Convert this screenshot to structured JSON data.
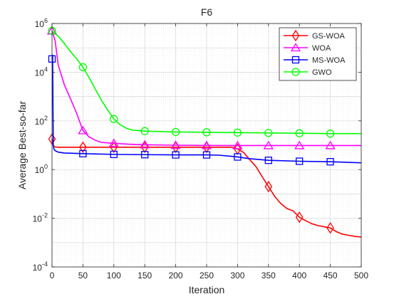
{
  "chart_data": {
    "type": "line",
    "title": "F6",
    "xlabel": "Iteration",
    "ylabel": "Average Best-so-far",
    "xlim": [
      0,
      500
    ],
    "ylim": [
      0.0001,
      1000000
    ],
    "yscale": "log",
    "grid": true,
    "minor_grid": true,
    "legend_position": "top-right",
    "xticks": [
      "0",
      "50",
      "100",
      "150",
      "200",
      "250",
      "300",
      "350",
      "400",
      "450",
      "500"
    ],
    "yticks": [
      {
        "base": "10",
        "exp": "-4",
        "value": 0.0001
      },
      {
        "base": "10",
        "exp": "-2",
        "value": 0.01
      },
      {
        "base": "10",
        "exp": "0",
        "value": 1
      },
      {
        "base": "10",
        "exp": "2",
        "value": 100
      },
      {
        "base": "10",
        "exp": "4",
        "value": 10000
      },
      {
        "base": "10",
        "exp": "6",
        "value": 1000000
      }
    ],
    "series": [
      {
        "name": "GS-WOA",
        "color": "#ff0000",
        "marker": "diamond",
        "x": [
          0,
          1,
          3,
          5,
          10,
          50,
          100,
          150,
          200,
          250,
          290,
          300,
          310,
          320,
          330,
          340,
          350,
          360,
          370,
          380,
          390,
          400,
          410,
          420,
          430,
          440,
          450,
          460,
          470,
          480,
          490,
          500
        ],
        "y": [
          18,
          11,
          9,
          8.5,
          8.3,
          8.3,
          8.3,
          8.3,
          8.3,
          8.3,
          8.3,
          7,
          5,
          2.5,
          1.3,
          0.5,
          0.2,
          0.08,
          0.04,
          0.025,
          0.02,
          0.011,
          0.008,
          0.006,
          0.005,
          0.0045,
          0.004,
          0.0028,
          0.0022,
          0.002,
          0.0018,
          0.0017
        ]
      },
      {
        "name": "WOA",
        "color": "#ff00ff",
        "marker": "triangle",
        "x": [
          0,
          5,
          10,
          20,
          30,
          40,
          50,
          60,
          70,
          80,
          100,
          125,
          150,
          200,
          250,
          300,
          350,
          400,
          450,
          500
        ],
        "y": [
          500000,
          200000,
          20000,
          3000,
          800,
          200,
          40,
          22,
          16,
          13,
          12,
          11,
          10.5,
          10,
          9.8,
          9.7,
          9.7,
          9.7,
          9.7,
          9.7
        ]
      },
      {
        "name": "MS-WOA",
        "color": "#0000ff",
        "marker": "square",
        "x": [
          0,
          1,
          2,
          3,
          5,
          8,
          10,
          20,
          50,
          100,
          150,
          200,
          250,
          270,
          290,
          300,
          320,
          350,
          400,
          450,
          500
        ],
        "y": [
          35000,
          50000,
          10,
          7,
          6,
          5.5,
          5.2,
          4.8,
          4.5,
          4.2,
          4.1,
          4.0,
          4.0,
          3.9,
          3.5,
          3.3,
          2.8,
          2.4,
          2.2,
          2.1,
          1.9
        ]
      },
      {
        "name": "GWO",
        "color": "#00ff00",
        "marker": "circle",
        "x": [
          0,
          10,
          20,
          30,
          40,
          50,
          60,
          70,
          80,
          90,
          100,
          110,
          120,
          130,
          150,
          200,
          250,
          300,
          350,
          400,
          450,
          500
        ],
        "y": [
          500000,
          300000,
          150000,
          70000,
          35000,
          16000,
          6000,
          2000,
          700,
          280,
          120,
          70,
          50,
          42,
          38,
          35,
          34,
          33,
          32,
          31,
          30,
          30
        ]
      }
    ]
  }
}
